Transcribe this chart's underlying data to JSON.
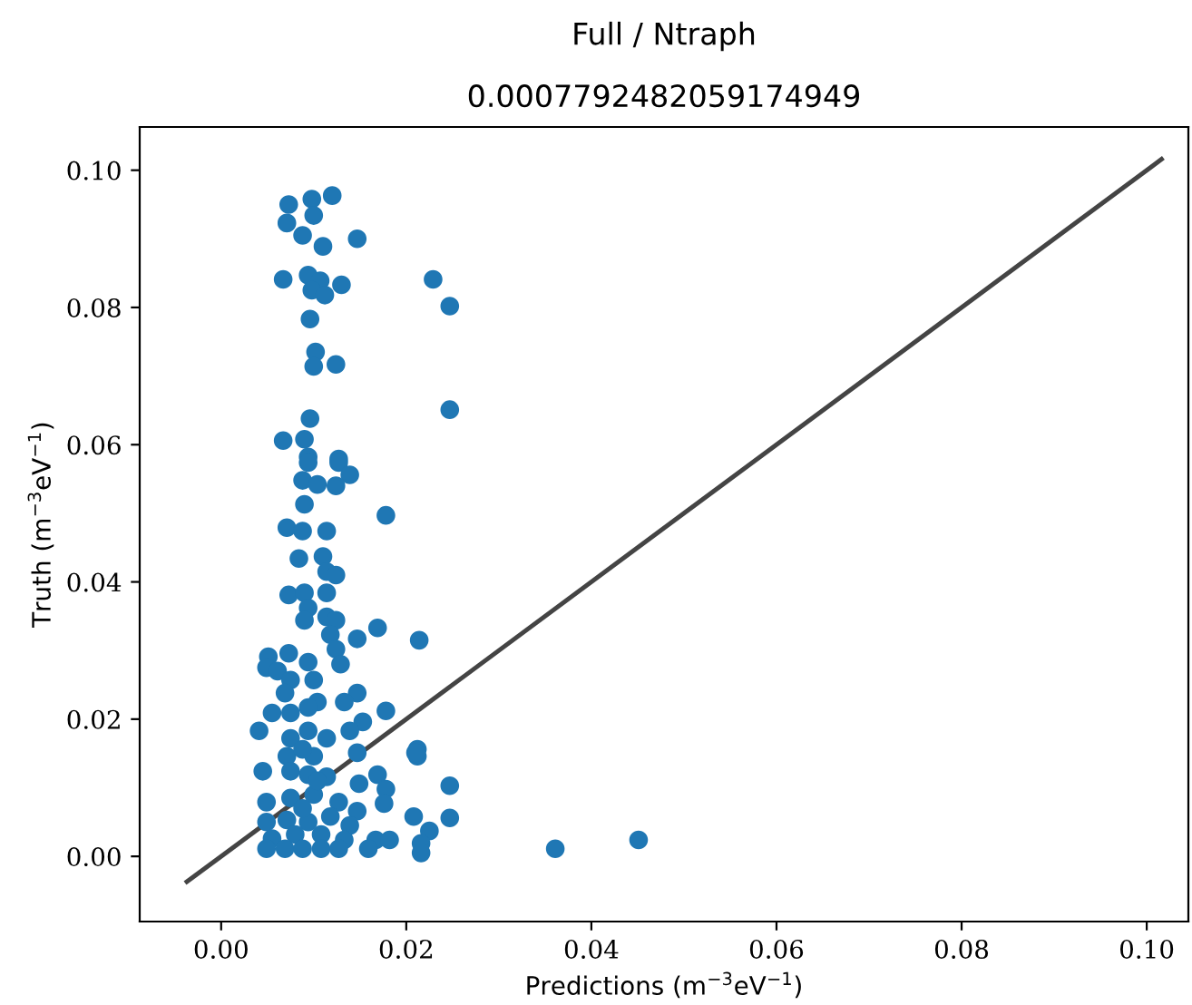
{
  "chart_data": {
    "type": "scatter",
    "title": "Full / Ntraph",
    "subtitle": "0.0007792482059174949",
    "xlabel": "Predictions (m$^{−3}$eV$^{−1}$)",
    "ylabel": "Truth (m$^{−3}$eV$^{−1}$)",
    "xlim": [
      -0.0088,
      0.1045
    ],
    "ylim": [
      -0.0095,
      0.1063
    ],
    "xticks": [
      {
        "value": 0,
        "label": "0.00"
      },
      {
        "value": 0.02,
        "label": "0.02"
      },
      {
        "value": 0.04,
        "label": "0.04"
      },
      {
        "value": 0.06,
        "label": "0.06"
      },
      {
        "value": 0.08,
        "label": "0.08"
      },
      {
        "value": 0.1,
        "label": "0.10"
      }
    ],
    "yticks": [
      {
        "value": 0,
        "label": "0.00"
      },
      {
        "value": 0.02,
        "label": "0.02"
      },
      {
        "value": 0.04,
        "label": "0.04"
      },
      {
        "value": 0.06,
        "label": "0.06"
      },
      {
        "value": 0.08,
        "label": "0.08"
      },
      {
        "value": 0.1,
        "label": "0.10"
      }
    ],
    "grid": false,
    "legend": false,
    "series": [
      {
        "marker": "circle",
        "color": "#1f77b4",
        "x": [
          0.012,
          0.0098,
          0.0073,
          0.0071,
          0.01,
          0.0088,
          0.011,
          0.0147,
          0.0067,
          0.0094,
          0.0107,
          0.013,
          0.0098,
          0.0112,
          0.0229,
          0.0247,
          0.0096,
          0.0102,
          0.01,
          0.0124,
          0.0247,
          0.0096,
          0.0067,
          0.009,
          0.0094,
          0.0127,
          0.0094,
          0.0127,
          0.0088,
          0.0104,
          0.0139,
          0.0124,
          0.009,
          0.0178,
          0.0071,
          0.0088,
          0.0114,
          0.0084,
          0.011,
          0.0114,
          0.0124,
          0.0114,
          0.0073,
          0.009,
          0.0094,
          0.009,
          0.0114,
          0.0124,
          0.0169,
          0.0214,
          0.0147,
          0.0118,
          0.0124,
          0.0129,
          0.0051,
          0.0073,
          0.0094,
          0.0049,
          0.0061,
          0.0075,
          0.01,
          0.0069,
          0.0147,
          0.0133,
          0.0178,
          0.0104,
          0.0055,
          0.0075,
          0.0094,
          0.0041,
          0.0153,
          0.0139,
          0.0147,
          0.0212,
          0.0212,
          0.0075,
          0.0094,
          0.0114,
          0.0071,
          0.01,
          0.0045,
          0.0075,
          0.0094,
          0.0114,
          0.0169,
          0.0247,
          0.0149,
          0.0178,
          0.0049,
          0.0075,
          0.01,
          0.0127,
          0.0176,
          0.0147,
          0.0247,
          0.0208,
          0.0049,
          0.0071,
          0.0094,
          0.0118,
          0.0139,
          0.0225,
          0.0055,
          0.008,
          0.0108,
          0.0133,
          0.0167,
          0.0182,
          0.0216,
          0.0049,
          0.0069,
          0.0088,
          0.0108,
          0.0127,
          0.0159,
          0.0216,
          0.0088,
          0.0104,
          0.0088,
          0.0361,
          0.0451,
          0.021
        ],
        "values": [
          0.0963,
          0.0958,
          0.095,
          0.0923,
          0.0934,
          0.0905,
          0.0889,
          0.09,
          0.0841,
          0.0847,
          0.0839,
          0.0833,
          0.0825,
          0.0818,
          0.0841,
          0.0802,
          0.0783,
          0.0735,
          0.0714,
          0.0717,
          0.0651,
          0.0638,
          0.0606,
          0.0608,
          0.0582,
          0.0579,
          0.0574,
          0.0574,
          0.0548,
          0.0542,
          0.0556,
          0.054,
          0.0513,
          0.0497,
          0.0479,
          0.0474,
          0.0474,
          0.0434,
          0.0437,
          0.0415,
          0.041,
          0.0384,
          0.0381,
          0.0384,
          0.0362,
          0.0344,
          0.0349,
          0.0344,
          0.0333,
          0.0315,
          0.0317,
          0.0323,
          0.0302,
          0.028,
          0.0291,
          0.0296,
          0.0283,
          0.0275,
          0.027,
          0.0257,
          0.0257,
          0.0238,
          0.0238,
          0.0225,
          0.0212,
          0.0225,
          0.0209,
          0.0209,
          0.0217,
          0.0183,
          0.0196,
          0.0183,
          0.0151,
          0.0156,
          0.0146,
          0.0172,
          0.0183,
          0.0172,
          0.0146,
          0.0146,
          0.0124,
          0.0124,
          0.0119,
          0.0116,
          0.0119,
          0.0103,
          0.0106,
          0.0098,
          0.0079,
          0.0085,
          0.009,
          0.0079,
          0.0077,
          0.0066,
          0.0056,
          0.0058,
          0.005,
          0.0053,
          0.005,
          0.0058,
          0.0045,
          0.0037,
          0.0026,
          0.0032,
          0.0032,
          0.0024,
          0.0024,
          0.0024,
          0.0019,
          0.0011,
          0.0011,
          0.0011,
          0.0011,
          0.0011,
          0.0011,
          0.0005,
          0.0156,
          0.011,
          0.007,
          0.0011,
          0.0024,
          0.0151
        ]
      },
      {
        "type": "line",
        "color": "#444444",
        "x": [
          -0.0037,
          0.1016
        ],
        "values": [
          -0.0037,
          0.1016
        ]
      }
    ]
  }
}
